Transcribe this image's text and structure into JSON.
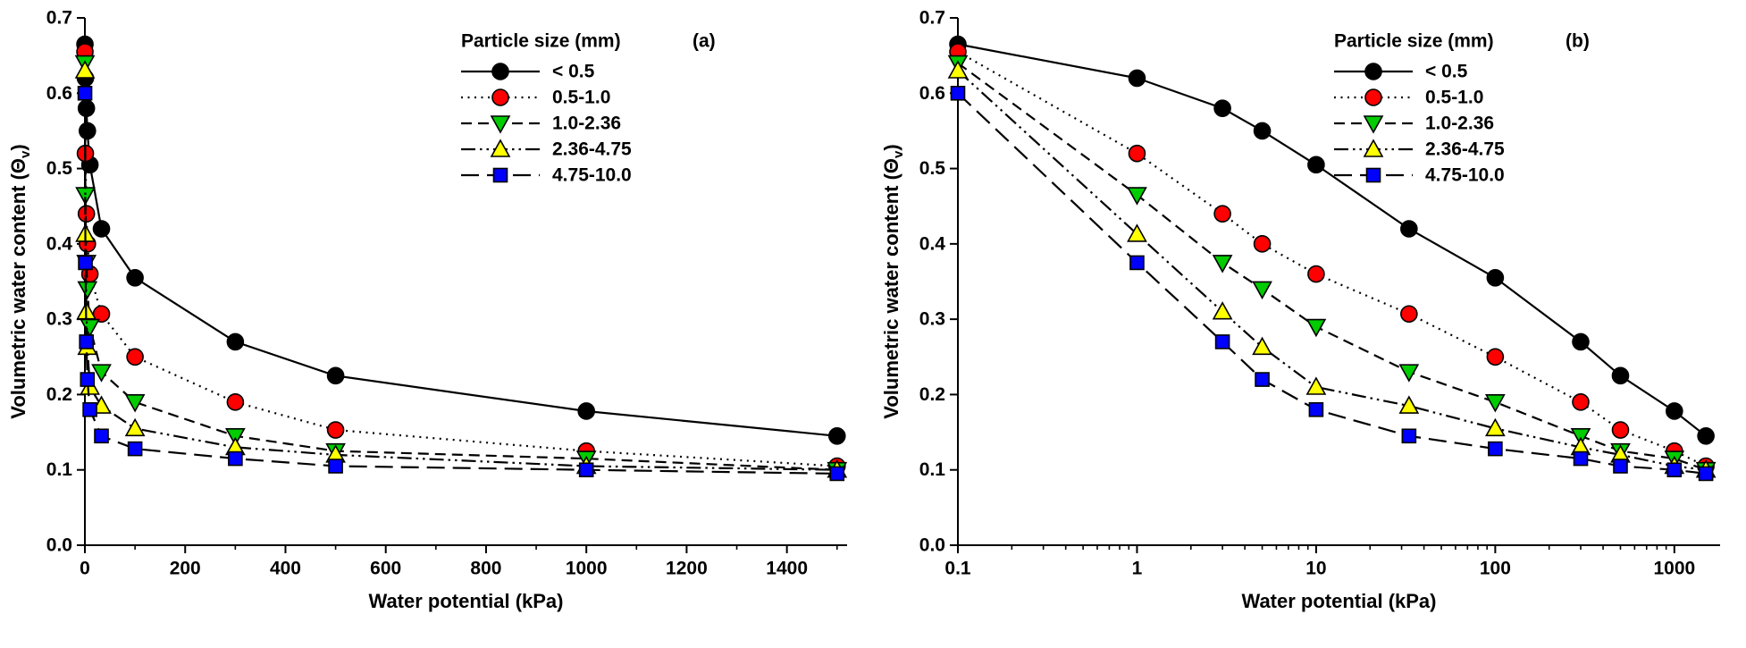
{
  "figure": {
    "background": "#ffffff",
    "axis_color": "#000000"
  },
  "chart_data": [
    {
      "panel": "a",
      "type": "line",
      "panel_label": "(a)",
      "x_scale": "linear",
      "xlim": [
        0,
        1520
      ],
      "xticks": [
        0,
        200,
        400,
        600,
        800,
        1000,
        1200,
        1400
      ],
      "xtick_labels": [
        "0",
        "200",
        "400",
        "600",
        "800",
        "1000",
        "1200",
        "1400"
      ],
      "xticks_minor": [
        100,
        300,
        500,
        700,
        900,
        1100,
        1300,
        1500
      ],
      "ylim": [
        0,
        0.7
      ],
      "yticks": [
        0,
        0.1,
        0.2,
        0.3,
        0.4,
        0.5,
        0.6,
        0.7
      ],
      "ytick_labels": [
        "0.0",
        "0.1",
        "0.2",
        "0.3",
        "0.4",
        "0.5",
        "0.6",
        "0.7"
      ],
      "xlabel": "Water potential (kPa)",
      "ylabel": {
        "pre": "Volumetric water content (Θ",
        "sub": "v",
        "post": ")"
      },
      "legend_title": "Particle size (mm)",
      "grid": false,
      "legend_position": "top-right-inside",
      "x": [
        0.1,
        1,
        3,
        5,
        10,
        33,
        100,
        300,
        500,
        1000,
        1500
      ],
      "series": [
        {
          "name": "< 0.5",
          "marker": "circle",
          "marker_color": "#000000",
          "line_color": "#000000",
          "line_style": "solid",
          "values": [
            0.665,
            0.62,
            0.58,
            0.55,
            0.505,
            0.42,
            0.355,
            0.27,
            0.225,
            0.178,
            0.145
          ]
        },
        {
          "name": "0.5-1.0",
          "marker": "circle",
          "marker_color": "#ff0000",
          "line_color": "#000000",
          "line_style": "dot",
          "values": [
            0.655,
            0.52,
            0.44,
            0.4,
            0.36,
            0.307,
            0.25,
            0.19,
            0.153,
            0.125,
            0.105
          ]
        },
        {
          "name": "1.0-2.36",
          "marker": "triangle-down",
          "marker_color": "#00cc00",
          "line_color": "#000000",
          "line_style": "dash",
          "values": [
            0.64,
            0.465,
            0.375,
            0.34,
            0.29,
            0.23,
            0.19,
            0.145,
            0.125,
            0.115,
            0.1
          ]
        },
        {
          "name": "2.36-4.75",
          "marker": "triangle-up",
          "marker_color": "#ffff00",
          "line_color": "#000000",
          "line_style": "dash-dot-dot",
          "values": [
            0.63,
            0.413,
            0.31,
            0.263,
            0.21,
            0.185,
            0.155,
            0.13,
            0.12,
            0.105,
            0.1
          ]
        },
        {
          "name": "4.75-10.0",
          "marker": "square",
          "marker_color": "#0000ff",
          "line_color": "#000000",
          "line_style": "long-dash",
          "values": [
            0.6,
            0.375,
            0.27,
            0.22,
            0.18,
            0.145,
            0.128,
            0.115,
            0.105,
            0.1,
            0.095
          ]
        }
      ]
    },
    {
      "panel": "b",
      "type": "line",
      "panel_label": "(b)",
      "x_scale": "log",
      "xlim": [
        0.1,
        1800
      ],
      "xticks": [
        0.1,
        1,
        10,
        100,
        1000
      ],
      "xtick_labels": [
        "0.1",
        "1",
        "10",
        "100",
        "1000"
      ],
      "xticks_minor": [
        0.2,
        0.3,
        0.4,
        0.5,
        0.6,
        0.7,
        0.8,
        0.9,
        2,
        3,
        4,
        5,
        6,
        7,
        8,
        9,
        20,
        30,
        40,
        50,
        60,
        70,
        80,
        90,
        200,
        300,
        400,
        500,
        600,
        700,
        800,
        900
      ],
      "ylim": [
        0,
        0.7
      ],
      "yticks": [
        0,
        0.1,
        0.2,
        0.3,
        0.4,
        0.5,
        0.6,
        0.7
      ],
      "ytick_labels": [
        "0.0",
        "0.1",
        "0.2",
        "0.3",
        "0.4",
        "0.5",
        "0.6",
        "0.7"
      ],
      "xlabel": "Water potential (kPa)",
      "ylabel": {
        "pre": "Volumetric water content (Θ",
        "sub": "v",
        "post": ")"
      },
      "legend_title": "Particle size (mm)",
      "grid": false,
      "legend_position": "top-right-inside",
      "x": [
        0.1,
        1,
        3,
        5,
        10,
        33,
        100,
        300,
        500,
        1000,
        1500
      ],
      "series": [
        {
          "name": "< 0.5",
          "marker": "circle",
          "marker_color": "#000000",
          "line_color": "#000000",
          "line_style": "solid",
          "values": [
            0.665,
            0.62,
            0.58,
            0.55,
            0.505,
            0.42,
            0.355,
            0.27,
            0.225,
            0.178,
            0.145
          ]
        },
        {
          "name": "0.5-1.0",
          "marker": "circle",
          "marker_color": "#ff0000",
          "line_color": "#000000",
          "line_style": "dot",
          "values": [
            0.655,
            0.52,
            0.44,
            0.4,
            0.36,
            0.307,
            0.25,
            0.19,
            0.153,
            0.125,
            0.105
          ]
        },
        {
          "name": "1.0-2.36",
          "marker": "triangle-down",
          "marker_color": "#00cc00",
          "line_color": "#000000",
          "line_style": "dash",
          "values": [
            0.64,
            0.465,
            0.375,
            0.34,
            0.29,
            0.23,
            0.19,
            0.145,
            0.125,
            0.115,
            0.1
          ]
        },
        {
          "name": "2.36-4.75",
          "marker": "triangle-up",
          "marker_color": "#ffff00",
          "line_color": "#000000",
          "line_style": "dash-dot-dot",
          "values": [
            0.63,
            0.413,
            0.31,
            0.263,
            0.21,
            0.185,
            0.155,
            0.13,
            0.12,
            0.105,
            0.1
          ]
        },
        {
          "name": "4.75-10.0",
          "marker": "square",
          "marker_color": "#0000ff",
          "line_color": "#000000",
          "line_style": "long-dash",
          "values": [
            0.6,
            0.375,
            0.27,
            0.22,
            0.18,
            0.145,
            0.128,
            0.115,
            0.105,
            0.1,
            0.095
          ]
        }
      ]
    }
  ]
}
